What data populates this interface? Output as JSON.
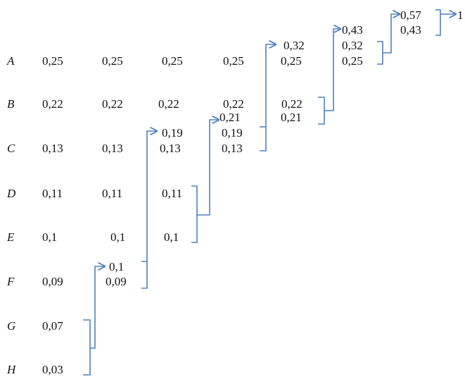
{
  "symbols": [
    "A",
    "B",
    "C",
    "D",
    "E",
    "F",
    "G",
    "H"
  ],
  "columns": [
    [
      "0,25",
      "0,22",
      "0,13",
      "0,11",
      "0,1",
      "0,09",
      "0,07",
      "0,03"
    ],
    [
      "0,25",
      "0,22",
      "0,13",
      "0,11",
      "0,1",
      "0,1",
      "0,09"
    ],
    [
      "0,25",
      "0,22",
      "0,19",
      "0,13",
      "0,11",
      "0,1"
    ],
    [
      "0,25",
      "0,22",
      "0,21",
      "0,19",
      "0,13"
    ],
    [
      "0,32",
      "0,25",
      "0,22",
      "0,21"
    ],
    [
      "0,43",
      "0,32",
      "0,25"
    ],
    [
      "0,57",
      "0,43"
    ],
    [
      "1"
    ]
  ],
  "connector_color": "#4f81bd"
}
